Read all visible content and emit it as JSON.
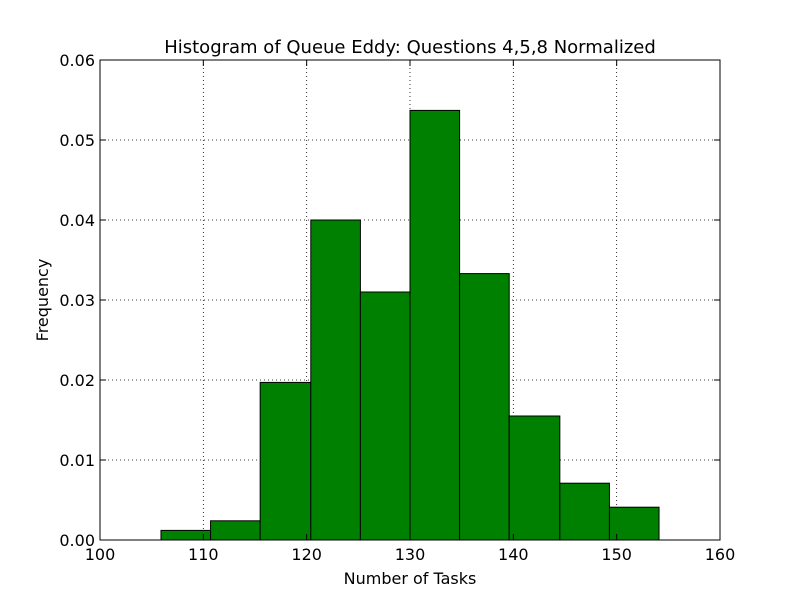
{
  "chart_data": {
    "type": "bar",
    "title": "Histogram of Queue Eddy: Questions 4,5,8 Normalized",
    "xlabel": "Number of Tasks",
    "ylabel": "Frequency",
    "xlim": [
      100,
      160
    ],
    "ylim": [
      0,
      0.06
    ],
    "xticks": [
      "100",
      "110",
      "120",
      "130",
      "140",
      "150",
      "160"
    ],
    "yticks": [
      "0.00",
      "0.01",
      "0.02",
      "0.03",
      "0.04",
      "0.05",
      "0.06"
    ],
    "xtick_values": [
      100,
      110,
      120,
      130,
      140,
      150,
      160
    ],
    "ytick_values": [
      0,
      0.01,
      0.02,
      0.03,
      0.04,
      0.05,
      0.06
    ],
    "grid": true,
    "bar_color": "#008000",
    "bins": [
      {
        "start": 105.9,
        "end": 110.7,
        "value": 0.0012
      },
      {
        "start": 110.7,
        "end": 115.5,
        "value": 0.0024
      },
      {
        "start": 115.5,
        "end": 120.4,
        "value": 0.0197
      },
      {
        "start": 120.4,
        "end": 125.2,
        "value": 0.04
      },
      {
        "start": 125.2,
        "end": 130.0,
        "value": 0.031
      },
      {
        "start": 130.0,
        "end": 134.8,
        "value": 0.0537
      },
      {
        "start": 134.8,
        "end": 139.6,
        "value": 0.0333
      },
      {
        "start": 139.6,
        "end": 144.5,
        "value": 0.0155
      },
      {
        "start": 144.5,
        "end": 149.3,
        "value": 0.0071
      },
      {
        "start": 149.3,
        "end": 154.1,
        "value": 0.0041
      }
    ]
  }
}
